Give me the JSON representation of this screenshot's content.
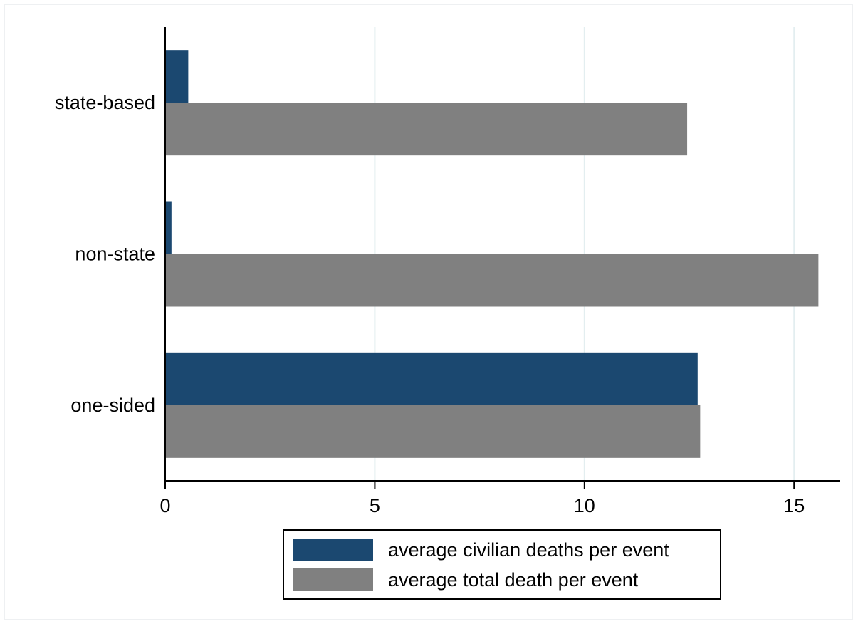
{
  "chart_data": {
    "type": "bar",
    "orientation": "horizontal",
    "categories": [
      "state-based",
      "non-state",
      "one-sided"
    ],
    "series": [
      {
        "name": "average civilian deaths per event",
        "color": "#1b4870",
        "values": [
          0.55,
          0.15,
          12.7
        ]
      },
      {
        "name": "average total death per event",
        "color": "#808080",
        "values": [
          12.45,
          15.58,
          12.76
        ]
      }
    ],
    "xlabel": "",
    "ylabel": "",
    "xlim": [
      0,
      16.1
    ],
    "xticks": [
      0,
      5,
      10,
      15
    ],
    "grid": true,
    "grid_color": "#e3eef0",
    "legend_position": "bottom"
  }
}
